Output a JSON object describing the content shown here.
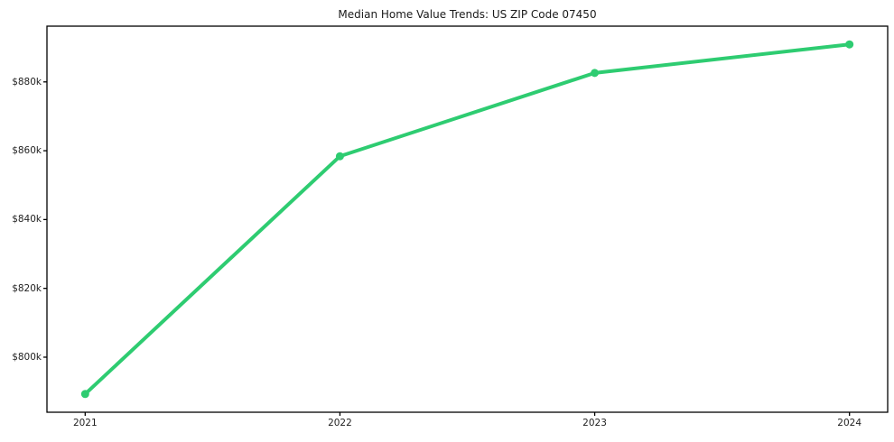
{
  "figure": {
    "background_color": "#ffffff",
    "spine_color": "#000000",
    "tick_text_color": "#1f1f1f"
  },
  "chart_data": {
    "type": "line",
    "title": "Median Home Value Trends: US ZIP Code 07450",
    "xlabel": "",
    "ylabel": "",
    "categories": [
      "2021",
      "2022",
      "2023",
      "2024"
    ],
    "values": [
      789300,
      858400,
      882600,
      890900
    ],
    "ylim": [
      784000,
      896200
    ],
    "yticks": [
      {
        "value": 800000,
        "label": "$800k"
      },
      {
        "value": 820000,
        "label": "$820k"
      },
      {
        "value": 840000,
        "label": "$840k"
      },
      {
        "value": 860000,
        "label": "$860k"
      },
      {
        "value": 880000,
        "label": "$880k"
      }
    ],
    "grid": false,
    "legend_position": "none",
    "line_color": "#2ecc71",
    "line_width": 4,
    "marker": "circle",
    "marker_size": 9
  }
}
